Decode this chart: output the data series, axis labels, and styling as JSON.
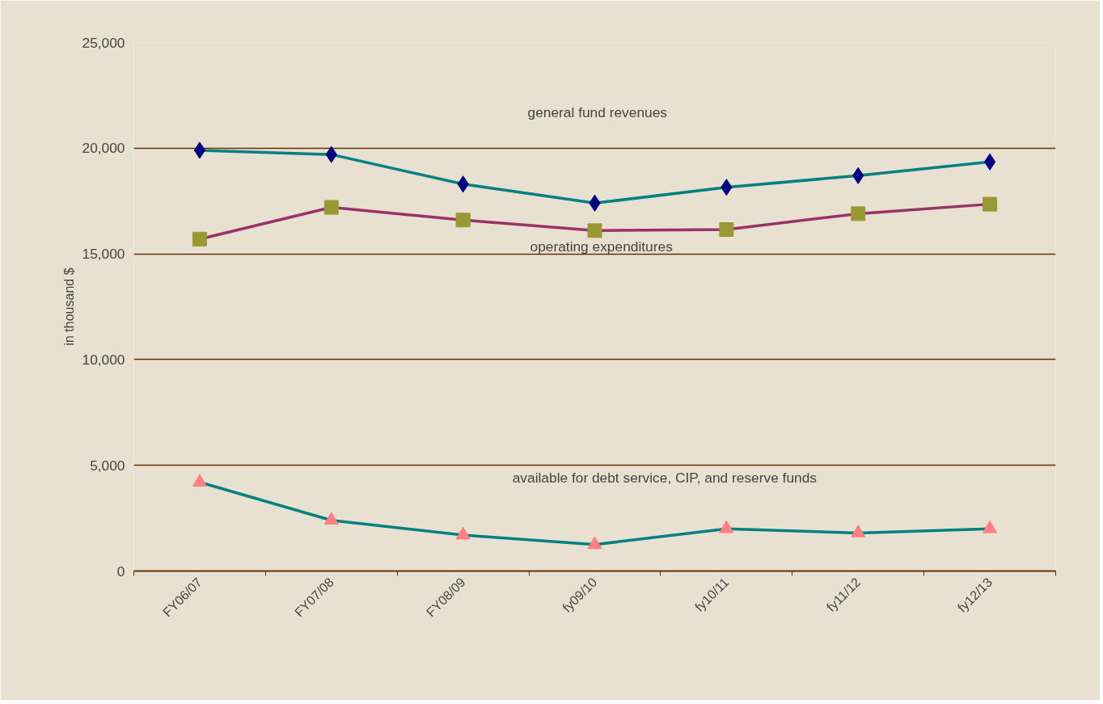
{
  "chart_data": {
    "type": "line",
    "ylabel": "in thousand $",
    "categories": [
      "FY06/07",
      "FY07/08",
      "FY08/09",
      "fy09/10",
      "fy10/11",
      "fy11/12",
      "fy12/13"
    ],
    "series": [
      {
        "color": "#008080",
        "colors": [
          "#000080",
          "#000080",
          "#000080",
          "#000080",
          "#000080",
          "#000080",
          "#000080"
        ],
        "marker": "diamond",
        "values": [
          19900,
          19700,
          18300,
          17400,
          18150,
          18700,
          19350
        ]
      },
      {
        "color": "#993366",
        "colors": [
          "#999933",
          "#999933",
          "#999933",
          "#999933",
          "#999933",
          "#999933",
          "#999933"
        ],
        "marker": "square",
        "values": [
          15700,
          17200,
          16600,
          16100,
          16150,
          16900,
          17350
        ]
      },
      {
        "color": "#008080",
        "colors": [
          "#ff8080",
          "#ff8080",
          "#ff8080",
          "#ff8080",
          "#ff8080",
          "#ff8080",
          "#ff8080"
        ],
        "marker": "triangle",
        "values": [
          4200,
          2400,
          1700,
          1250,
          2000,
          1800,
          2000
        ]
      }
    ],
    "annotations": [
      "general fund revenues",
      "operating expenditures",
      "available for debt service, CIP, and  reserve funds"
    ],
    "ylim": [
      0,
      25000
    ],
    "yticks": [
      0,
      {
        "value": 5000,
        "label": "5,000"
      },
      {
        "value": 10000,
        "label": "10,000"
      },
      {
        "value": 15000,
        "label": "15,000"
      },
      {
        "value": 20000,
        "label": "20,000"
      },
      {
        "value": 25000,
        "label": "25,000"
      }
    ],
    "grid": "y"
  }
}
